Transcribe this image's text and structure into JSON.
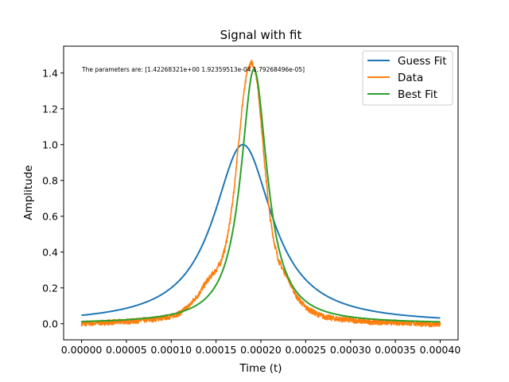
{
  "chart_data": {
    "type": "line",
    "title": "Signal with fit",
    "xlabel": "Time (t)",
    "ylabel": "Amplitude",
    "xlim": [
      -2e-05,
      0.00042
    ],
    "ylim": [
      -0.09,
      1.55
    ],
    "x_ticks": [
      0.0,
      5e-05,
      0.0001,
      0.00015,
      0.0002,
      0.00025,
      0.0003,
      0.00035,
      0.0004
    ],
    "x_tick_labels": [
      "0.00000",
      "0.00005",
      "0.00010",
      "0.00015",
      "0.00020",
      "0.00025",
      "0.00030",
      "0.00035",
      "0.00040"
    ],
    "y_ticks": [
      0.0,
      0.2,
      0.4,
      0.6,
      0.8,
      1.0,
      1.2,
      1.4
    ],
    "y_tick_labels": [
      "0.0",
      "0.2",
      "0.4",
      "0.6",
      "0.8",
      "1.0",
      "1.2",
      "1.4"
    ],
    "grid": false,
    "legend_position": "top-right",
    "annotation": "The parameters are: [1.42268321e+00 1.92359513e-04 1.79268496e-05]",
    "series": [
      {
        "name": "Guess Fit",
        "color": "#1f77b4",
        "model": "lorentzian",
        "params": {
          "amplitude": 1.0,
          "center": 0.00018,
          "gamma": 4e-05,
          "offset": 0.0
        }
      },
      {
        "name": "Data",
        "color": "#ff7f0e",
        "x": [
          0.0,
          2e-05,
          4e-05,
          6e-05,
          8e-05,
          0.0001,
          0.00011,
          0.00012,
          0.00013,
          0.00014,
          0.000145,
          0.00015,
          0.000155,
          0.00016,
          0.000165,
          0.00017,
          0.000175,
          0.00018,
          0.000185,
          0.00019,
          0.000193,
          0.000196,
          0.0002,
          0.000205,
          0.00021,
          0.000215,
          0.00022,
          0.000225,
          0.00023,
          0.000235,
          0.00024,
          0.00025,
          0.00026,
          0.00027,
          0.00028,
          0.0003,
          0.00032,
          0.00034,
          0.00036,
          0.00038,
          0.0004
        ],
        "y": [
          0.0,
          0.005,
          0.01,
          0.015,
          0.025,
          0.04,
          0.06,
          0.1,
          0.16,
          0.24,
          0.27,
          0.3,
          0.34,
          0.42,
          0.55,
          0.74,
          1.0,
          1.25,
          1.42,
          1.46,
          1.43,
          1.35,
          1.14,
          0.85,
          0.6,
          0.45,
          0.35,
          0.3,
          0.26,
          0.2,
          0.15,
          0.09,
          0.06,
          0.04,
          0.03,
          0.02,
          0.01,
          0.008,
          0.005,
          0.0,
          -0.005
        ]
      },
      {
        "name": "Best Fit",
        "color": "#2ca02c",
        "model": "lorentzian",
        "params": {
          "amplitude": 1.42268321,
          "center": 0.000192359513,
          "gamma": 1.79268496e-05,
          "offset": 0.0
        }
      }
    ]
  }
}
